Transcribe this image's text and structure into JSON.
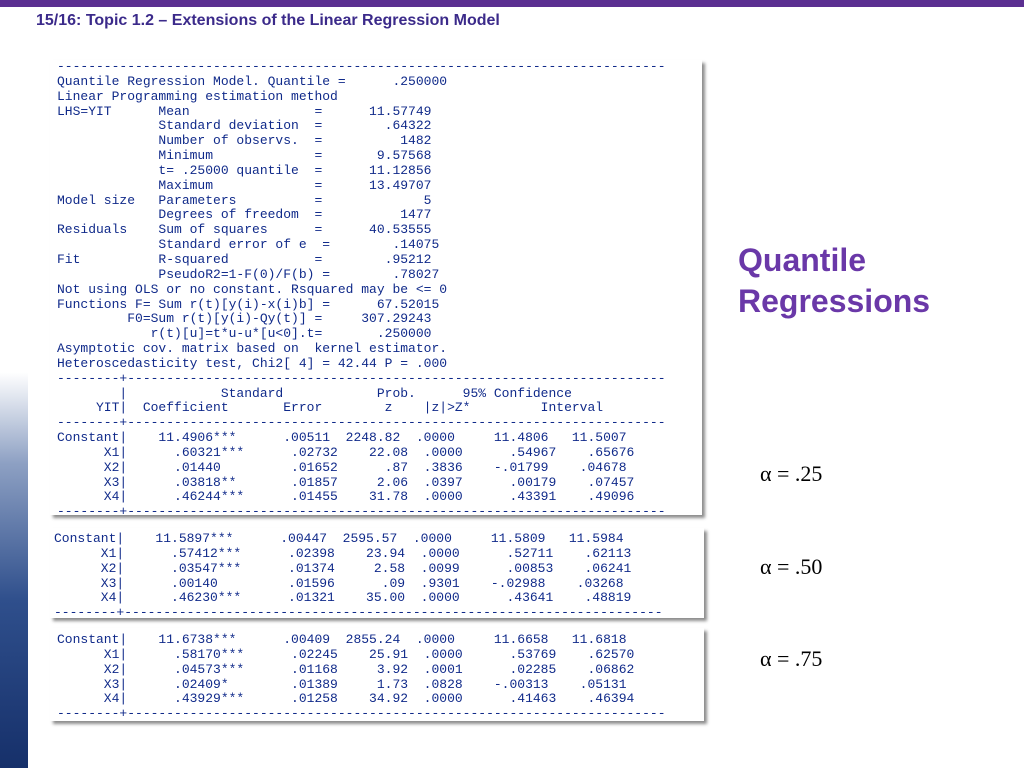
{
  "slide": {
    "header": "15/16: Topic 1.2 – Extensions of the Linear Regression Model",
    "title_line1": "Quantile",
    "title_line2": "Regressions",
    "alpha_labels": [
      "α = .25",
      "α = .50",
      "α = .75"
    ]
  },
  "output_main": [
    "------------------------------------------------------------------------------",
    "Quantile Regression Model. Quantile =      .250000",
    "Linear Programming estimation method",
    "LHS=YIT      Mean                =      11.57749",
    "             Standard deviation  =        .64322",
    "             Number of observs.  =          1482",
    "             Minimum             =       9.57568",
    "             t= .25000 quantile  =      11.12856",
    "             Maximum             =      13.49707",
    "Model size   Parameters          =             5",
    "             Degrees of freedom  =          1477",
    "Residuals    Sum of squares      =      40.53555",
    "             Standard error of e  =        .14075",
    "Fit          R-squared           =        .95212",
    "             PseudoR2=1-F(0)/F(b) =        .78027",
    "Not using OLS or no constant. Rsquared may be <= 0",
    "Functions F= Sum r(t)[y(i)-x(i)b] =      67.52015",
    "         F0=Sum r(t)[y(i)-Qy(t)] =     307.29243",
    "            r(t)[u]=t*u-u*[u<0].t=       .250000",
    "Asymptotic cov. matrix based on  kernel estimator.",
    "Heteroscedasticity test, Chi2[ 4] = 42.44 P = .000",
    "--------+---------------------------------------------------------------------",
    "        |            Standard            Prob.      95% Confidence",
    "     YIT|  Coefficient       Error        z    |z|>Z*         Interval",
    "--------+---------------------------------------------------------------------",
    "Constant|    11.4906***      .00511  2248.82  .0000     11.4806   11.5007",
    "      X1|      .60321***      .02732    22.08  .0000      .54967    .65676",
    "      X2|      .01440         .01652      .87  .3836    -.01799    .04678",
    "      X3|      .03818**       .01857     2.06  .0397      .00179    .07457",
    "      X4|      .46244***      .01455    31.78  .0000      .43391    .49096",
    "--------+---------------------------------------------------------------------"
  ],
  "output_q50": [
    "Constant|    11.5897***      .00447  2595.57  .0000     11.5809   11.5984",
    "      X1|      .57412***      .02398    23.94  .0000      .52711    .62113",
    "      X2|      .03547***      .01374     2.58  .0099      .00853    .06241",
    "      X3|      .00140         .01596      .09  .9301    -.02988    .03268",
    "      X4|      .46230***      .01321    35.00  .0000      .43641    .48819",
    "--------+---------------------------------------------------------------------"
  ],
  "output_q75": [
    "Constant|    11.6738***      .00409  2855.24  .0000     11.6658   11.6818",
    "      X1|      .58170***      .02245    25.91  .0000      .53769    .62570",
    "      X2|      .04573***      .01168     3.92  .0001      .02285    .06862",
    "      X3|      .02409*        .01389     1.73  .0828    -.00313    .05131",
    "      X4|      .43929***      .01258    34.92  .0000      .41463    .46394",
    "--------+---------------------------------------------------------------------"
  ]
}
